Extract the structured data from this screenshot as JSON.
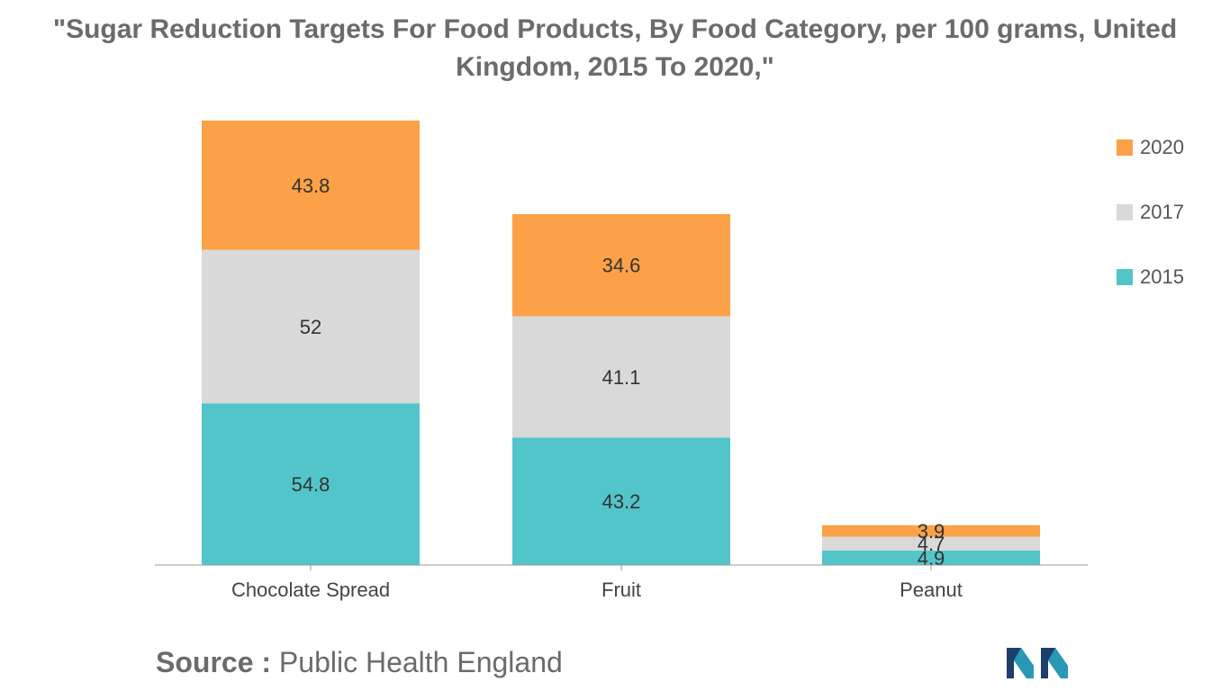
{
  "chart_data": {
    "type": "bar",
    "stacked": true,
    "title": "\"Sugar Reduction Targets For Food Products, By Food Category, per 100 grams, United Kingdom, 2015 To 2020,\"",
    "categories": [
      "Chocolate Spread",
      "Fruit",
      "Peanut"
    ],
    "series": [
      {
        "name": "2015",
        "values": [
          54.8,
          43.2,
          4.9
        ],
        "color": "#52c5ca"
      },
      {
        "name": "2017",
        "values": [
          52,
          41.1,
          4.7
        ],
        "color": "#d9d9d9"
      },
      {
        "name": "2020",
        "values": [
          43.8,
          34.6,
          3.9
        ],
        "color": "#fca148"
      }
    ],
    "legend_position": "top-right",
    "grid": false,
    "ylim": [
      0,
      150.6
    ]
  },
  "source": {
    "label": "Source :",
    "text": "Public Health England"
  },
  "logo_icon": "mordor-intelligence-logo"
}
